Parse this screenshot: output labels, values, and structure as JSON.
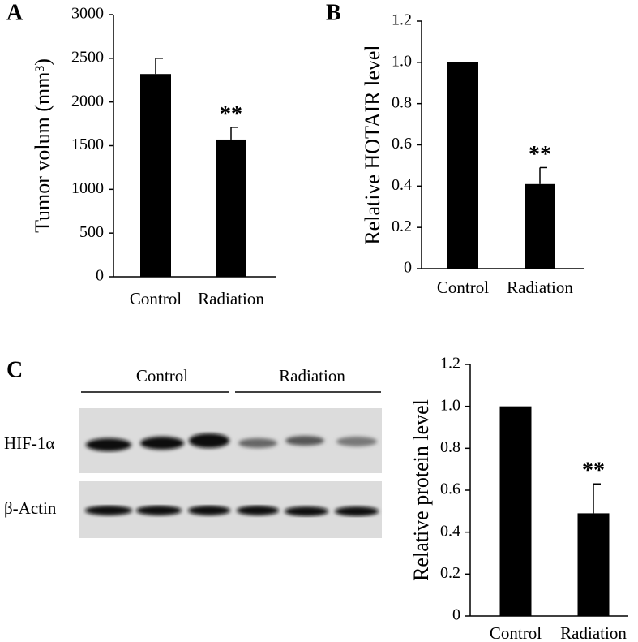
{
  "chart_data": [
    {
      "type": "bar",
      "panel_label": "A",
      "ylabel": "Tumor volum (mm³)",
      "categories": [
        "Control",
        "Radiation"
      ],
      "values": [
        2320,
        1570
      ],
      "errors": [
        180,
        140
      ],
      "annotations": [
        null,
        "**"
      ],
      "color": "#000000",
      "ylim": [
        0,
        3000
      ],
      "yticks": [
        0,
        500,
        1000,
        1500,
        2000,
        2500,
        3000
      ]
    },
    {
      "type": "bar",
      "panel_label": "B",
      "ylabel": "Relative HOTAIR level",
      "categories": [
        "Control",
        "Radiation"
      ],
      "values": [
        1,
        0.41
      ],
      "errors": [
        null,
        0.08
      ],
      "annotations": [
        null,
        "**"
      ],
      "color": "#000000",
      "ylim": [
        0,
        1.2
      ],
      "yticks": [
        0,
        0.2,
        0.4,
        0.6,
        0.8,
        {
          "value": 1,
          "label": "1.0"
        },
        1.2
      ]
    },
    {
      "type": "bar",
      "ylabel": "Relative protein level",
      "categories": [
        "Control",
        "Radiation"
      ],
      "values": [
        1,
        0.49
      ],
      "errors": [
        null,
        0.14
      ],
      "annotations": [
        null,
        "**"
      ],
      "color": "#000000",
      "ylim": [
        0,
        1.2
      ],
      "yticks": [
        0,
        0.2,
        0.4,
        0.6,
        0.8,
        {
          "value": 1,
          "label": "1.0"
        },
        1.2
      ]
    }
  ],
  "blot": {
    "panel_label": "C",
    "groups": [
      "Control",
      "Radiation"
    ],
    "rows": [
      "HIF-1α",
      "β-Actin"
    ]
  }
}
